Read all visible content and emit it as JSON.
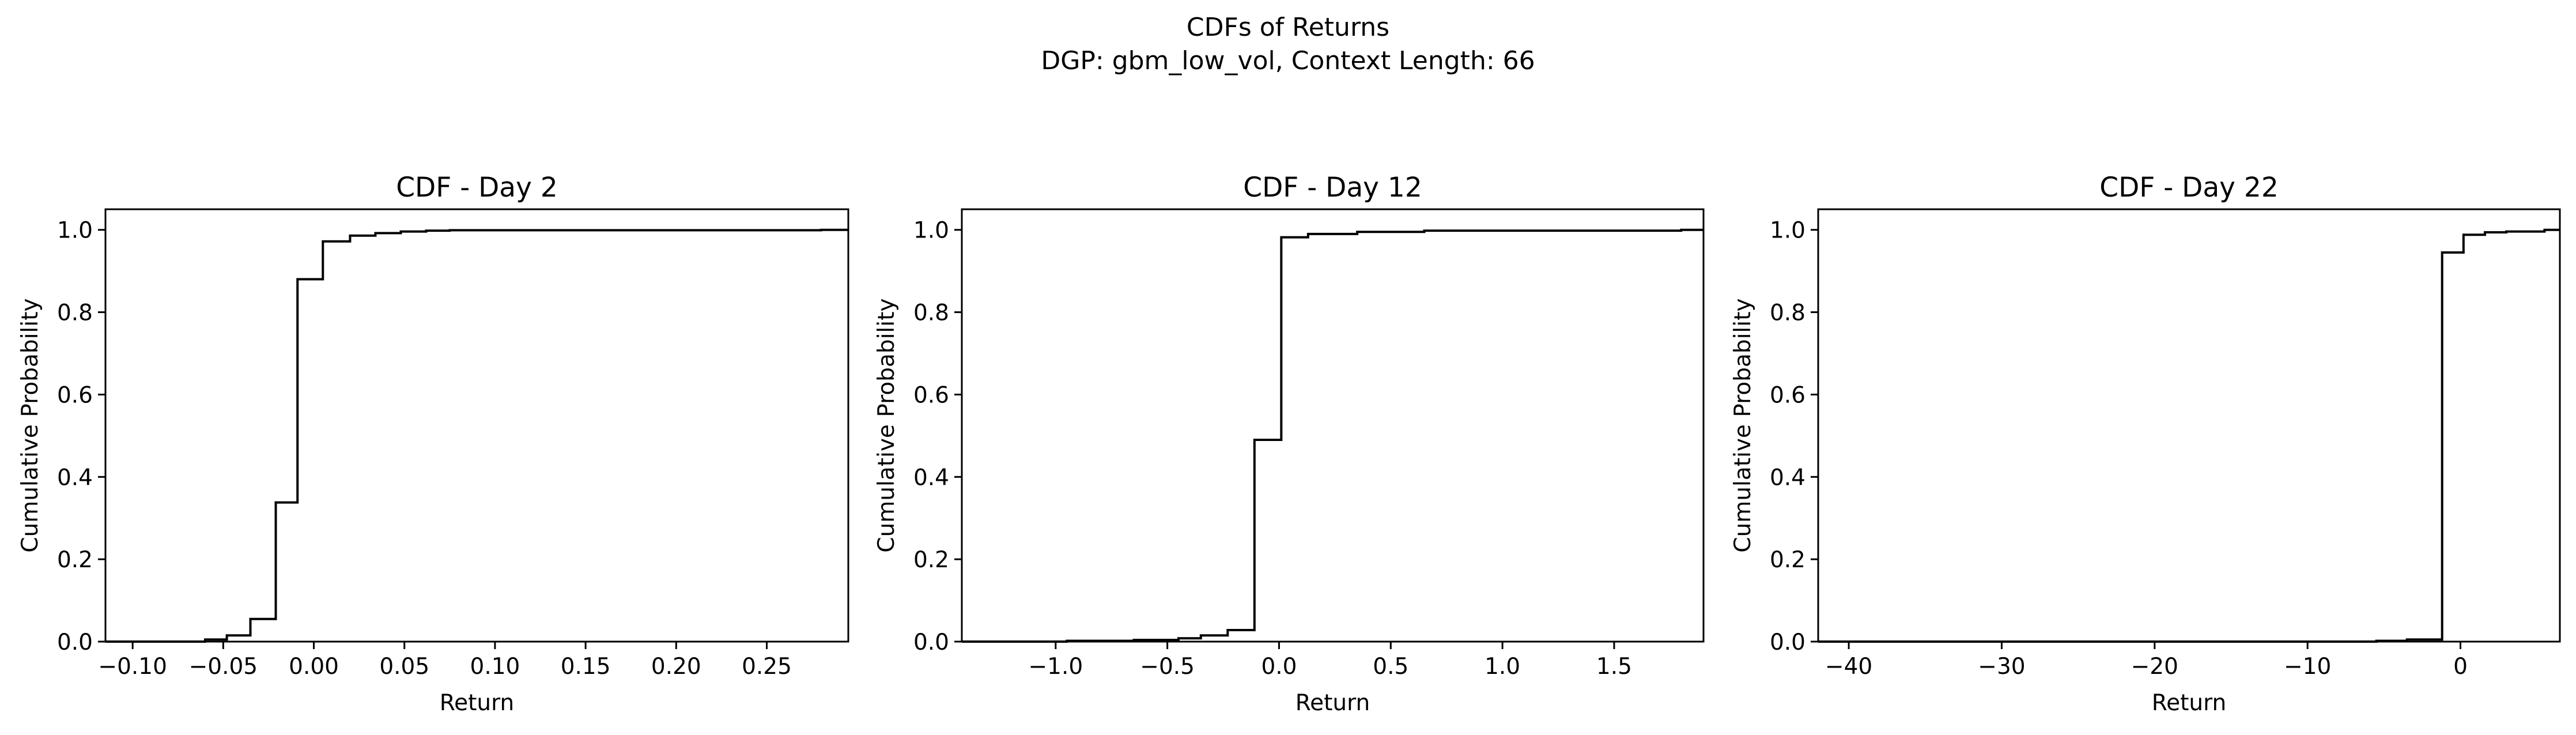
{
  "figure": {
    "title_line1": "CDFs of Returns",
    "title_line2": "DGP: gbm_low_vol, Context Length: 66"
  },
  "chart_data": [
    {
      "type": "line",
      "step": "post",
      "title": "CDF - Day 2",
      "xlabel": "Return",
      "ylabel": "Cumulative Probability",
      "xlim": [
        -0.115,
        0.295
      ],
      "ylim": [
        0,
        1.05
      ],
      "xticks": [
        -0.1,
        -0.05,
        0.0,
        0.05,
        0.1,
        0.15,
        0.2,
        0.25
      ],
      "xtick_labels": [
        "−0.10",
        "−0.05",
        "0.00",
        "0.05",
        "0.10",
        "0.15",
        "0.20",
        "0.25"
      ],
      "yticks": [
        0.0,
        0.2,
        0.4,
        0.6,
        0.8,
        1.0
      ],
      "ytick_labels": [
        "0.0",
        "0.2",
        "0.4",
        "0.6",
        "0.8",
        "1.0"
      ],
      "x": [
        -0.115,
        -0.06,
        -0.048,
        -0.035,
        -0.021,
        -0.009,
        0.005,
        0.02,
        0.034,
        0.048,
        0.062,
        0.075,
        0.28,
        0.295
      ],
      "y": [
        0.0,
        0.005,
        0.015,
        0.055,
        0.338,
        0.88,
        0.972,
        0.986,
        0.992,
        0.996,
        0.998,
        0.999,
        1.0,
        1.0
      ]
    },
    {
      "type": "line",
      "step": "post",
      "title": "CDF - Day 12",
      "xlabel": "Return",
      "ylabel": "Cumulative Probability",
      "xlim": [
        -1.42,
        1.9
      ],
      "ylim": [
        0,
        1.05
      ],
      "xticks": [
        -1.0,
        -0.5,
        0.0,
        0.5,
        1.0,
        1.5
      ],
      "xtick_labels": [
        "−1.0",
        "−0.5",
        "0.0",
        "0.5",
        "1.0",
        "1.5"
      ],
      "yticks": [
        0.0,
        0.2,
        0.4,
        0.6,
        0.8,
        1.0
      ],
      "ytick_labels": [
        "0.0",
        "0.2",
        "0.4",
        "0.6",
        "0.8",
        "1.0"
      ],
      "x": [
        -1.42,
        -0.95,
        -0.65,
        -0.45,
        -0.35,
        -0.23,
        -0.11,
        0.01,
        0.13,
        0.35,
        0.65,
        1.8,
        1.9
      ],
      "y": [
        0.0,
        0.002,
        0.004,
        0.008,
        0.015,
        0.028,
        0.49,
        0.982,
        0.99,
        0.995,
        0.998,
        1.0,
        1.0
      ]
    },
    {
      "type": "line",
      "step": "post",
      "title": "CDF - Day 22",
      "xlabel": "Return",
      "ylabel": "Cumulative Probability",
      "xlim": [
        -42,
        6.5
      ],
      "ylim": [
        0,
        1.05
      ],
      "xticks": [
        -40,
        -30,
        -20,
        -10,
        0
      ],
      "xtick_labels": [
        "−40",
        "−30",
        "−20",
        "−10",
        "0"
      ],
      "yticks": [
        0.0,
        0.2,
        0.4,
        0.6,
        0.8,
        1.0
      ],
      "ytick_labels": [
        "0.0",
        "0.2",
        "0.4",
        "0.6",
        "0.8",
        "1.0"
      ],
      "x": [
        -42,
        -5.5,
        -3.5,
        -1.2,
        0.2,
        1.6,
        3.0,
        5.5,
        6.5
      ],
      "y": [
        0.0,
        0.002,
        0.005,
        0.945,
        0.988,
        0.994,
        0.996,
        1.0,
        1.0
      ]
    }
  ]
}
